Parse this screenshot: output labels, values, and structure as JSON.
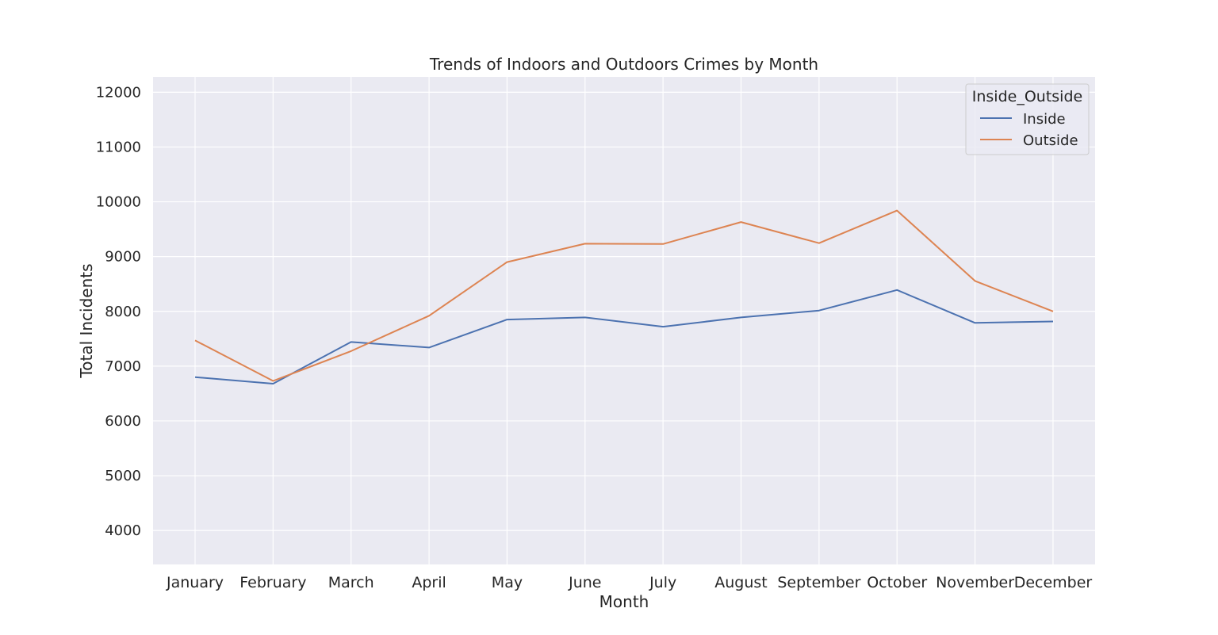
{
  "chart_data": {
    "type": "line",
    "title": "Trends of Indoors and Outdoors Crimes by Month",
    "xlabel": "Month",
    "ylabel": "Total Incidents",
    "categories": [
      "January",
      "February",
      "March",
      "April",
      "May",
      "June",
      "July",
      "August",
      "September",
      "October",
      "November",
      "December"
    ],
    "yticks": [
      4000,
      5000,
      6000,
      7000,
      8000,
      9000,
      10000,
      11000,
      12000
    ],
    "ylim": [
      3380,
      12280
    ],
    "grid": true,
    "legend": {
      "title": "Inside_Outside",
      "placement": "top-right"
    },
    "series": [
      {
        "name": "Inside",
        "color": "#4c72b0",
        "values": [
          6800,
          6680,
          7440,
          7340,
          7850,
          7890,
          7720,
          7890,
          8015,
          8390,
          7790,
          7815
        ]
      },
      {
        "name": "Outside",
        "color": "#dd8452",
        "values": [
          7470,
          6730,
          7275,
          7920,
          8900,
          9235,
          9230,
          9630,
          9245,
          9840,
          8555,
          8000
        ]
      }
    ]
  }
}
